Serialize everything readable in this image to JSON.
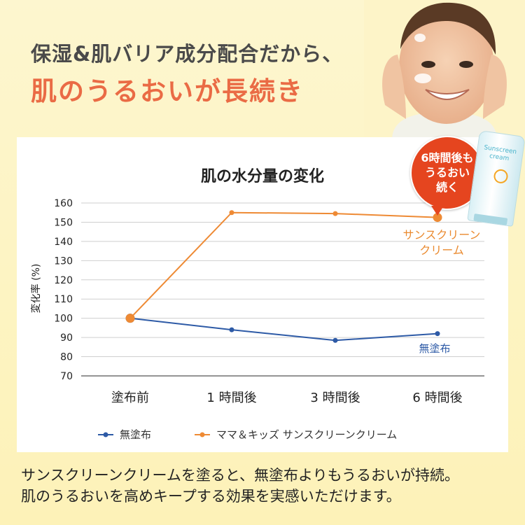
{
  "headline": {
    "line1": "保湿&肌バリア成分配合だから、",
    "line2": "肌のうるおいが長続き"
  },
  "badge": {
    "lines": [
      "6時間後も",
      "うるおい",
      "続く"
    ]
  },
  "product": {
    "name": "Sunscreen cream"
  },
  "colors": {
    "accent": "#ea6b45",
    "series_sunscreen": "#ee8a34",
    "series_none": "#2d5aa6",
    "badge": "#e5451f"
  },
  "chart_data": {
    "type": "line",
    "title": "肌の水分量の変化",
    "ylabel": "変化率 (%)",
    "xlabel": "",
    "categories": [
      "塗布前",
      "1 時間後",
      "3 時間後",
      "6 時間後"
    ],
    "ylim": [
      70,
      160
    ],
    "yticks": [
      70,
      80,
      90,
      100,
      110,
      120,
      130,
      140,
      150,
      160
    ],
    "grid": true,
    "legend_position": "bottom",
    "series": [
      {
        "name": "無塗布",
        "color": "#2d5aa6",
        "values": [
          100,
          94,
          88.5,
          92
        ]
      },
      {
        "name": "ママ＆キッズ サンスクリーンクリーム",
        "color": "#ee8a34",
        "values": [
          100,
          155,
          154.5,
          152.5
        ]
      }
    ],
    "annotations": [
      {
        "text": "サンスクリーン\nクリーム",
        "series": 1
      },
      {
        "text": "無塗布",
        "series": 0
      }
    ]
  },
  "footer": {
    "line1": "サンスクリーンクリームを塗ると、無塗布よりもうるおいが持続。",
    "line2": "肌のうるおいを高めキープする効果を実感いただけます。"
  }
}
